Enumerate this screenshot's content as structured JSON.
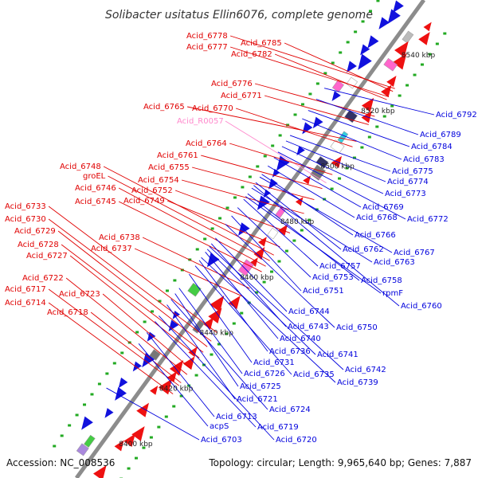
{
  "title": "Solibacter usitatus Ellin6076, complete genome",
  "accession_text": "Accession: NC_008536",
  "topology_text": "Topology: circular; Length: 9,965,640 bp; Genes: 7,887",
  "colors": {
    "backbone": "#8c8c8c",
    "left_label": "#e00000",
    "right_label": "#0000dd",
    "rna_label": "#ff88cc",
    "forward_feature": "#ee1111",
    "reverse_feature": "#1111dd",
    "tick": "#22aa22"
  },
  "scale_labels": [
    "8540 kbp",
    "8520 kbp",
    "8500 kbp",
    "8480 kbp",
    "8460 kbp",
    "8440 kbp",
    "8420 kbp",
    "8400 kbp"
  ],
  "left_labels": [
    {
      "text": "Acid_6778",
      "target_kbp": 8534
    },
    {
      "text": "Acid_6785",
      "target_kbp": 8533
    },
    {
      "text": "Acid_6777",
      "target_kbp": 8531
    },
    {
      "text": "Acid_6782",
      "target_kbp": 8530
    },
    {
      "text": "Acid_6776",
      "target_kbp": 8524
    },
    {
      "text": "Acid_6771",
      "target_kbp": 8521
    },
    {
      "text": "Acid_6765",
      "target_kbp": 8515
    },
    {
      "text": "Acid_6770",
      "target_kbp": 8513
    },
    {
      "text": "Acid_R0057",
      "target_kbp": 8500,
      "rna": true
    },
    {
      "text": "Acid_6764",
      "target_kbp": 8503
    },
    {
      "text": "Acid_6761",
      "target_kbp": 8498
    },
    {
      "text": "Acid_6748",
      "target_kbp": 8474
    },
    {
      "text": "Acid_6755",
      "target_kbp": 8494
    },
    {
      "text": "groEL",
      "target_kbp": 8472
    },
    {
      "text": "Acid_6754",
      "target_kbp": 8489
    },
    {
      "text": "Acid_6746",
      "target_kbp": 8470
    },
    {
      "text": "Acid_6752",
      "target_kbp": 8482
    },
    {
      "text": "Acid_6745",
      "target_kbp": 8468
    },
    {
      "text": "Acid_6749",
      "target_kbp": 8477
    },
    {
      "text": "Acid_6733",
      "target_kbp": 8446
    },
    {
      "text": "Acid_6730",
      "target_kbp": 8443
    },
    {
      "text": "Acid_6729",
      "target_kbp": 8441
    },
    {
      "text": "Acid_6738",
      "target_kbp": 8462
    },
    {
      "text": "Acid_6728",
      "target_kbp": 8439
    },
    {
      "text": "Acid_6737",
      "target_kbp": 8459
    },
    {
      "text": "Acid_6727",
      "target_kbp": 8437
    },
    {
      "text": "Acid_6722",
      "target_kbp": 8431
    },
    {
      "text": "Acid_6717",
      "target_kbp": 8427
    },
    {
      "text": "Acid_6723",
      "target_kbp": 8433
    },
    {
      "text": "Acid_6714",
      "target_kbp": 8424
    },
    {
      "text": "Acid_6718",
      "target_kbp": 8428
    }
  ],
  "right_labels": [
    {
      "text": "Acid_6792",
      "target_kbp": 8522
    },
    {
      "text": "Acid_6789",
      "target_kbp": 8518
    },
    {
      "text": "Acid_6784",
      "target_kbp": 8514
    },
    {
      "text": "Acid_6783",
      "target_kbp": 8511
    },
    {
      "text": "Acid_6775",
      "target_kbp": 8505
    },
    {
      "text": "Acid_6774",
      "target_kbp": 8503
    },
    {
      "text": "Acid_6773",
      "target_kbp": 8501
    },
    {
      "text": "Acid_6769",
      "target_kbp": 8497
    },
    {
      "text": "Acid_6772",
      "target_kbp": 8499
    },
    {
      "text": "Acid_6768",
      "target_kbp": 8494
    },
    {
      "text": "Acid_6766",
      "target_kbp": 8491
    },
    {
      "text": "Acid_6762",
      "target_kbp": 8488
    },
    {
      "text": "Acid_6767",
      "target_kbp": 8490
    },
    {
      "text": "Acid_6763",
      "target_kbp": 8486
    },
    {
      "text": "Acid_6757",
      "target_kbp": 8482
    },
    {
      "text": "Acid_6758",
      "target_kbp": 8484
    },
    {
      "text": "Acid_6753",
      "target_kbp": 8479
    },
    {
      "text": "rpmF",
      "target_kbp": 8483
    },
    {
      "text": "Acid_6751",
      "target_kbp": 8476
    },
    {
      "text": "Acid_6760",
      "target_kbp": 8487
    },
    {
      "text": "Acid_6744",
      "target_kbp": 8468
    },
    {
      "text": "Acid_6743",
      "target_kbp": 8466
    },
    {
      "text": "Acid_6750",
      "target_kbp": 8473
    },
    {
      "text": "Acid_6740",
      "target_kbp": 8463
    },
    {
      "text": "Acid_6736",
      "target_kbp": 8460
    },
    {
      "text": "Acid_6741",
      "target_kbp": 8464
    },
    {
      "text": "Acid_6731",
      "target_kbp": 8455
    },
    {
      "text": "Acid_6742",
      "target_kbp": 8465
    },
    {
      "text": "Acid_6726",
      "target_kbp": 8450
    },
    {
      "text": "Acid_6735",
      "target_kbp": 8458
    },
    {
      "text": "Acid_6725",
      "target_kbp": 8448
    },
    {
      "text": "Acid_6739",
      "target_kbp": 8461
    },
    {
      "text": "Acid_6721",
      "target_kbp": 8444
    },
    {
      "text": "Acid_6724",
      "target_kbp": 8446
    },
    {
      "text": "Acid_6713",
      "target_kbp": 8434
    },
    {
      "text": "Acid_6719",
      "target_kbp": 8438
    },
    {
      "text": "acpS",
      "target_kbp": 8430
    },
    {
      "text": "Acid_6703",
      "target_kbp": 8414
    },
    {
      "text": "Acid_6720",
      "target_kbp": 8440
    }
  ]
}
